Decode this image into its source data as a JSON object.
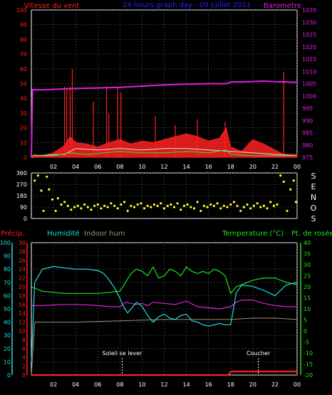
{
  "colors": {
    "wind": "#ff2020",
    "baro": "#e020e0",
    "hum": "#20e0e0",
    "indoor": "#a09070",
    "temp": "#20e020",
    "dew": "#e020e0",
    "dir": "#ffff20",
    "rain": "#ff2020",
    "title": "#2020ff",
    "grid": "#707070",
    "axis": "#ffffff"
  },
  "chart_data": [
    {
      "type": "line",
      "title": "24 hours graph day - 09 Juillet 2011",
      "left_label": "Vitesse du vent",
      "right_label": "Barometre",
      "x_ticks": [
        "02",
        "04",
        "06",
        "08",
        "10",
        "12",
        "14",
        "16",
        "18",
        "20",
        "22",
        "00"
      ],
      "y_left_ticks": [
        "0",
        "10",
        "20",
        "30",
        "40",
        "50",
        "60",
        "70",
        "80",
        "90",
        "100"
      ],
      "y_left_range": [
        0,
        100
      ],
      "y_right_ticks": [
        "975",
        "980",
        "985",
        "990",
        "995",
        "1000",
        "1005",
        "1010",
        "1015",
        "1020",
        "1025",
        "1030",
        "1035"
      ],
      "y_right_range": [
        975,
        1035
      ],
      "series": [
        {
          "name": "Barometre",
          "x": [
            0,
            0.1,
            1,
            4,
            8,
            12,
            16,
            17.7,
            18,
            19,
            21,
            22,
            23,
            24
          ],
          "y": [
            975,
            1002.5,
            1002.5,
            1003,
            1003.5,
            1004.5,
            1005,
            1005,
            1005.7,
            1005.7,
            1006,
            1005.8,
            1005.7,
            1005.5
          ]
        },
        {
          "name": "Rafales",
          "x": [
            0.2,
            1,
            2,
            3,
            3.5,
            4,
            5,
            6,
            7,
            8,
            9,
            10,
            11,
            12,
            13,
            14,
            15,
            16,
            17,
            17.6,
            18,
            19,
            20,
            21,
            22,
            22.8,
            23.5,
            24
          ],
          "y": [
            2,
            1,
            3,
            8,
            14,
            10,
            9,
            7,
            10,
            12,
            9,
            11,
            10,
            12,
            14,
            16,
            14,
            11,
            13,
            20,
            7,
            4,
            12,
            9,
            5,
            2,
            2,
            2
          ]
        },
        {
          "name": "Vitesse moyenne",
          "x": [
            0,
            2,
            3.5,
            5,
            8,
            10,
            12,
            14,
            16,
            17.6,
            18,
            20,
            22,
            24
          ],
          "y": [
            1,
            1,
            3,
            2,
            4,
            3,
            3,
            4,
            3,
            5,
            2,
            1,
            1,
            1
          ]
        },
        {
          "name": "Vitesse du vent",
          "x": [
            0,
            3,
            4,
            6,
            8,
            10,
            12,
            14,
            16,
            18,
            20,
            22,
            24
          ],
          "y": [
            1,
            2,
            6,
            5,
            6,
            5,
            6,
            6,
            5,
            4,
            3,
            2,
            1
          ]
        }
      ],
      "spikes": {
        "x": [
          3.0,
          3.2,
          3.5,
          3.7,
          5.6,
          6.8,
          7.0,
          7.8,
          8.1,
          11.2,
          13.0,
          15.0,
          17.5,
          22.8
        ],
        "y": [
          48,
          46,
          48,
          60,
          38,
          48,
          30,
          48,
          44,
          28,
          22,
          26,
          24,
          58
        ]
      }
    },
    {
      "type": "scatter",
      "title": "Direction du vent",
      "y_left_ticks": [
        "0",
        "90",
        "180",
        "270",
        "360"
      ],
      "y_range": [
        0,
        360
      ],
      "compass": [
        "S",
        "E",
        "N",
        "O",
        "S"
      ],
      "series": [
        {
          "name": "Direction",
          "x": [
            0.3,
            0.6,
            0.9,
            1.1,
            1.4,
            1.6,
            1.9,
            2.2,
            2.4,
            2.7,
            3.0,
            3.3,
            3.6,
            3.9,
            4.2,
            4.5,
            4.8,
            5.1,
            5.4,
            5.7,
            6.0,
            6.3,
            6.6,
            6.9,
            7.2,
            7.5,
            7.8,
            8.1,
            8.4,
            8.7,
            9.0,
            9.3,
            9.6,
            9.9,
            10.2,
            10.5,
            10.8,
            11.1,
            11.4,
            11.7,
            12.0,
            12.3,
            12.6,
            12.9,
            13.2,
            13.5,
            13.8,
            14.1,
            14.4,
            14.7,
            15.0,
            15.3,
            15.6,
            15.9,
            16.2,
            16.5,
            16.8,
            17.1,
            17.4,
            17.7,
            18.0,
            18.3,
            18.6,
            18.9,
            19.2,
            19.5,
            19.8,
            20.1,
            20.4,
            20.7,
            21.0,
            21.3,
            21.6,
            21.9,
            22.2,
            22.5,
            22.8,
            23.1,
            23.4,
            23.7,
            23.9
          ],
          "y": [
            300,
            340,
            220,
            60,
            330,
            230,
            150,
            60,
            160,
            110,
            130,
            100,
            70,
            90,
            100,
            80,
            110,
            90,
            70,
            100,
            110,
            80,
            100,
            90,
            120,
            100,
            80,
            110,
            130,
            60,
            100,
            90,
            110,
            120,
            80,
            100,
            90,
            110,
            100,
            120,
            80,
            100,
            110,
            90,
            120,
            70,
            100,
            110,
            90,
            80,
            130,
            60,
            100,
            90,
            110,
            100,
            120,
            80,
            100,
            90,
            110,
            130,
            100,
            60,
            90,
            110,
            80,
            100,
            120,
            90,
            100,
            80,
            130,
            100,
            110,
            340,
            290,
            60,
            230,
            300,
            130
          ]
        }
      ]
    },
    {
      "type": "line",
      "left_label": "Précip.",
      "hum_label": "Humidité",
      "indoor_label": "Indoor hum",
      "right_label": "Temperature (°C)",
      "dew_label": "Pt. de rosée",
      "x_ticks": [
        "02",
        "04",
        "06",
        "08",
        "10",
        "12",
        "14",
        "16",
        "18",
        "20",
        "22",
        "00"
      ],
      "y_hum_ticks": [
        "0",
        "10",
        "20",
        "30",
        "40",
        "50",
        "60",
        "70",
        "80",
        "90",
        "100"
      ],
      "y_hum_range": [
        0,
        100
      ],
      "y_precip_ticks": [
        "0",
        "2",
        "4",
        "6",
        "8",
        "10",
        "12",
        "14",
        "16",
        "18",
        "20",
        "22",
        "24",
        "26",
        "28",
        "30"
      ],
      "y_precip_range": [
        0,
        30
      ],
      "y_temp_ticks": [
        "-20",
        "-15",
        "-10",
        "-5",
        "0",
        "5",
        "10",
        "15",
        "20",
        "25",
        "30",
        "35",
        "40"
      ],
      "y_temp_range": [
        -20,
        40
      ],
      "annotations": [
        {
          "label": "Soleil se lever",
          "x": 8.2
        },
        {
          "label": "Coucher",
          "x": 20.5
        }
      ],
      "series": [
        {
          "name": "Humidité",
          "x": [
            0,
            0.3,
            1,
            2,
            3,
            4,
            5,
            6,
            6.5,
            7,
            7.5,
            8,
            8.3,
            8.7,
            9,
            9.5,
            10,
            10.5,
            11,
            11.5,
            12,
            12.5,
            13,
            13.5,
            14,
            14.5,
            15,
            15.5,
            16,
            16.5,
            17,
            17.5,
            18,
            18.5,
            19,
            20,
            21,
            22,
            23,
            24
          ],
          "y": [
            10,
            70,
            80,
            82,
            81,
            80,
            80,
            79,
            77,
            72,
            66,
            58,
            52,
            47,
            50,
            55,
            52,
            45,
            40,
            44,
            46,
            43,
            42,
            45,
            46,
            41,
            40,
            38,
            37,
            38,
            39,
            38,
            38,
            62,
            68,
            67,
            64,
            60,
            68,
            70
          ]
        },
        {
          "name": "Indoor hum",
          "x": [
            0,
            0.3,
            4,
            8,
            12,
            16,
            18,
            20,
            22,
            24
          ],
          "y": [
            0,
            40,
            40,
            41,
            42,
            42,
            42,
            43,
            43,
            42
          ]
        },
        {
          "name": "Temperature (°C)",
          "x": [
            0,
            1,
            2,
            3,
            4,
            5,
            6,
            7,
            8,
            8.5,
            9,
            9.5,
            10,
            10.5,
            11,
            11.5,
            12,
            12.5,
            13,
            13.5,
            14,
            14.5,
            15,
            15.5,
            16,
            16.5,
            17,
            17.5,
            18,
            18.5,
            19,
            20,
            21,
            22,
            23,
            24
          ],
          "y": [
            20,
            18,
            17.5,
            17,
            17,
            17,
            17,
            17.5,
            18,
            22,
            26,
            28,
            27,
            25,
            29,
            24,
            25,
            28,
            27,
            25,
            29,
            27,
            26,
            27,
            26,
            28,
            27,
            25,
            17,
            20,
            21,
            23,
            24,
            24,
            22,
            21
          ]
        },
        {
          "name": "Pt. de rosée",
          "x": [
            0,
            1,
            2,
            3,
            4,
            5,
            6,
            7,
            8,
            8.5,
            9,
            9.5,
            10,
            10.5,
            11,
            12,
            13,
            14,
            15,
            16,
            17,
            17.5,
            18,
            18.5,
            19,
            20,
            21,
            22,
            23,
            24
          ],
          "y": [
            11.5,
            11.5,
            11.8,
            12,
            12,
            11.8,
            11.5,
            11,
            11,
            13,
            12.5,
            12,
            12.5,
            11.5,
            13,
            12.5,
            12,
            13.5,
            11,
            10.5,
            10,
            10.5,
            11,
            13,
            14,
            14,
            12.5,
            11.5,
            11,
            11
          ]
        },
        {
          "name": "Précip.",
          "x": [
            0,
            0.1,
            17.8,
            18,
            24
          ],
          "y": [
            0,
            0,
            0,
            0.8,
            0.8
          ]
        }
      ]
    }
  ]
}
